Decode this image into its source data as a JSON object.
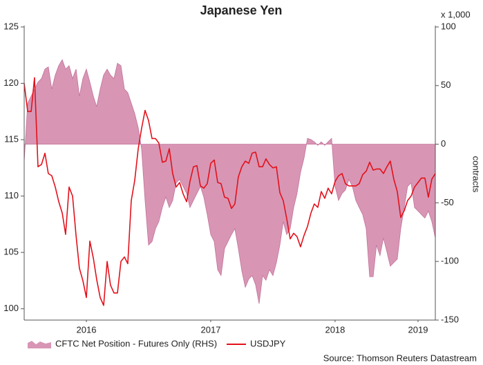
{
  "chart_data": {
    "type": "line",
    "title": "Japanese Yen",
    "y2_unit": "x 1,000",
    "y2label": "contracts",
    "source": "Source: Thomson Reuters Datastream",
    "x": [
      2016.0,
      2016.028,
      2016.056,
      2016.083,
      2016.111,
      2016.139,
      2016.167,
      2016.194,
      2016.222,
      2016.25,
      2016.278,
      2016.306,
      2016.333,
      2016.361,
      2016.389,
      2016.417,
      2016.444,
      2016.472,
      2016.5,
      2016.528,
      2016.556,
      2016.583,
      2016.611,
      2016.639,
      2016.667,
      2016.694,
      2016.722,
      2016.75,
      2016.778,
      2016.806,
      2016.833,
      2016.861,
      2016.889,
      2016.917,
      2016.944,
      2016.972,
      2017.0,
      2017.028,
      2017.056,
      2017.083,
      2017.111,
      2017.139,
      2017.167,
      2017.194,
      2017.222,
      2017.25,
      2017.278,
      2017.306,
      2017.333,
      2017.361,
      2017.389,
      2017.417,
      2017.444,
      2017.472,
      2017.5,
      2017.528,
      2017.556,
      2017.583,
      2017.611,
      2017.639,
      2017.667,
      2017.694,
      2017.722,
      2017.75,
      2017.778,
      2017.806,
      2017.833,
      2017.861,
      2017.889,
      2017.917,
      2017.944,
      2017.972,
      2018.0,
      2018.028,
      2018.056,
      2018.083,
      2018.111,
      2018.139,
      2018.167,
      2018.194,
      2018.222,
      2018.25,
      2018.278,
      2018.306,
      2018.333,
      2018.361,
      2018.389,
      2018.417,
      2018.444,
      2018.472,
      2018.5,
      2018.528,
      2018.556,
      2018.583,
      2018.611,
      2018.639,
      2018.667,
      2018.694,
      2018.722,
      2018.75,
      2018.778,
      2018.806,
      2018.833,
      2018.861,
      2018.889,
      2018.917,
      2018.944,
      2018.972,
      2019.0,
      2019.028,
      2019.056,
      2019.083,
      2019.111,
      2019.139,
      2019.167,
      2019.194,
      2019.222,
      2019.25,
      2019.278,
      2019.306
    ],
    "xlim": [
      2016.0,
      2019.306
    ],
    "xticks": [
      {
        "value": 2016.5,
        "label": "2016"
      },
      {
        "value": 2017.5,
        "label": "2017"
      },
      {
        "value": 2018.5,
        "label": "2018"
      },
      {
        "value": 2019.167,
        "label": "2019"
      }
    ],
    "ylim": [
      99,
      125
    ],
    "yticks": [
      100,
      105,
      110,
      115,
      120,
      125
    ],
    "y2lim": [
      -150,
      100
    ],
    "y2ticks": [
      -150,
      -100,
      -50,
      0,
      50,
      100
    ],
    "grid": false,
    "legend": "bottom",
    "series": [
      {
        "name": "CFTC Net Position - Futures Only (RHS)",
        "type": "area",
        "axis": "y2",
        "color": "#d896b4",
        "values": [
          -15,
          35,
          41,
          47,
          53,
          56,
          64,
          66,
          47,
          59,
          67,
          72,
          64,
          67,
          56,
          64,
          41,
          56,
          64,
          53,
          41,
          32,
          47,
          59,
          64,
          59,
          56,
          69,
          67,
          47,
          44,
          35,
          26,
          14,
          -4,
          -48,
          -86,
          -83,
          -72,
          -66,
          -54,
          -45,
          -54,
          -48,
          -33,
          -30,
          -36,
          -42,
          -54,
          -48,
          -42,
          -36,
          -45,
          -60,
          -77,
          -83,
          -107,
          -112,
          -89,
          -83,
          -77,
          -72,
          -89,
          -108,
          -122,
          -115,
          -112,
          -120,
          -136,
          -112,
          -116,
          -107,
          -112,
          -101,
          -86,
          -66,
          -77,
          -72,
          -54,
          -42,
          -24,
          -12,
          5,
          4,
          2,
          -1,
          2,
          -1,
          2,
          5,
          -36,
          -48,
          -42,
          -39,
          -30,
          -36,
          -48,
          -54,
          -60,
          -72,
          -113,
          -113,
          -86,
          -95,
          -80,
          -92,
          -104,
          -101,
          -98,
          -72,
          -54,
          -36,
          -33,
          -54,
          -57,
          -60,
          -63,
          -57,
          -66,
          -80
        ]
      },
      {
        "name": "USDJPY",
        "type": "line",
        "color": "#e3101a",
        "values": [
          120.0,
          117.5,
          117.5,
          120.5,
          112.6,
          112.8,
          113.8,
          112.0,
          111.8,
          110.8,
          109.5,
          108.5,
          106.6,
          110.8,
          110.0,
          106.5,
          103.6,
          102.5,
          101.0,
          106.0,
          104.5,
          102.6,
          101.0,
          100.3,
          104.2,
          102.1,
          101.4,
          101.4,
          104.2,
          104.6,
          104.0,
          109.6,
          111.4,
          114.2,
          116.0,
          117.6,
          116.7,
          115.1,
          115.1,
          114.7,
          113.0,
          113.1,
          114.2,
          112.0,
          110.8,
          111.2,
          110.2,
          109.5,
          111.3,
          112.6,
          112.7,
          110.9,
          110.7,
          111.1,
          112.9,
          113.2,
          111.2,
          111.1,
          109.9,
          109.8,
          108.9,
          109.3,
          111.7,
          112.6,
          113.1,
          112.9,
          113.8,
          113.9,
          112.6,
          112.6,
          113.3,
          112.8,
          112.5,
          112.6,
          110.3,
          109.6,
          108.0,
          106.2,
          106.7,
          106.4,
          105.5,
          106.5,
          107.3,
          108.5,
          109.3,
          109.0,
          110.4,
          109.8,
          110.7,
          110.2,
          111.3,
          111.8,
          112.0,
          111.1,
          110.9,
          110.9,
          110.9,
          111.1,
          111.9,
          112.2,
          113.0,
          112.3,
          112.4,
          112.4,
          112.0,
          112.6,
          113.1,
          111.5,
          110.4,
          108.1,
          108.7,
          109.6,
          110.0,
          110.8,
          111.2,
          111.6,
          111.6,
          109.9,
          111.5,
          112.0
        ]
      }
    ]
  }
}
